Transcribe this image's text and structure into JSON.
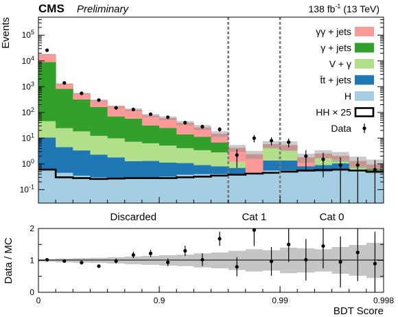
{
  "figure": {
    "experiment": "CMS",
    "status": "Preliminary",
    "lumi_value": "138 fb",
    "lumi_exp": "-1",
    "lumi_energy": " (13 TeV)"
  },
  "chart_data": {
    "type": "bar",
    "stacked": true,
    "log_y": true,
    "xlabel": "BDT Score",
    "ylabel": "Events",
    "ratio_ylabel": "Data / MC",
    "ylim": [
      0.03,
      500000
    ],
    "ratio_ylim": [
      0,
      2
    ],
    "bins": 20,
    "x_ticks": [
      {
        "bin": 0,
        "label": "0"
      },
      {
        "bin": 7,
        "label": "0.9"
      },
      {
        "bin": 14,
        "label": "0.99"
      },
      {
        "bin": 20,
        "label": "0.998"
      }
    ],
    "y_ticks": [
      {
        "value": 0.1,
        "base": "10",
        "exp": "-1"
      },
      {
        "value": 1,
        "base": "10",
        "exp": "0"
      },
      {
        "value": 10,
        "base": "10",
        "exp": "1"
      },
      {
        "value": 100,
        "base": "10",
        "exp": "2"
      },
      {
        "value": 1000,
        "base": "10",
        "exp": "3"
      },
      {
        "value": 10000,
        "base": "10",
        "exp": "4"
      },
      {
        "value": 100000,
        "base": "10",
        "exp": "5"
      }
    ],
    "ratio_y_ticks": [
      0,
      1,
      2
    ],
    "category_boundaries": [
      11,
      14
    ],
    "regions": [
      {
        "label": "Discarded",
        "center_bin": 5.5
      },
      {
        "label": "Cat 1",
        "center_bin": 12.5
      },
      {
        "label": "Cat 0",
        "center_bin": 17
      }
    ],
    "series": [
      {
        "name": "H",
        "color": "#a6cee3",
        "values": [
          0.6,
          0.45,
          0.35,
          0.3,
          0.28,
          0.27,
          0.3,
          0.32,
          0.38,
          0.4,
          0.4,
          0.4,
          0.4,
          0.55,
          0.55,
          0.5,
          0.5,
          0.55,
          0.5,
          0.45
        ]
      },
      {
        "name": "t̄t + jets",
        "color": "#1f78b4",
        "values": [
          10,
          4,
          3,
          2,
          1.5,
          1,
          1,
          0.8,
          0.7,
          0.5,
          0.4,
          0.3,
          0,
          0.8,
          0.8,
          0.3,
          0.4,
          0.5,
          0,
          0
        ]
      },
      {
        "name": "V + γ",
        "color": "#b2df8a",
        "values": [
          35,
          20,
          15,
          10,
          8,
          6,
          5,
          4,
          3,
          2.5,
          2,
          0.5,
          0,
          3,
          2,
          0,
          0.8,
          0.4,
          0.3,
          0
        ]
      },
      {
        "name": "γ + jets",
        "color": "#33a02c",
        "values": [
          9000,
          800,
          300,
          150,
          60,
          50,
          25,
          20,
          10,
          8,
          4,
          0,
          0,
          0,
          0,
          0,
          0,
          0,
          0,
          0.2
        ]
      },
      {
        "name": "γγ + jets",
        "color": "#fb9a99",
        "values": [
          9000,
          450,
          220,
          130,
          100,
          70,
          45,
          35,
          25,
          15,
          8,
          3,
          2,
          1.5,
          2,
          1,
          0.8,
          0.6,
          0.5,
          0.3
        ]
      }
    ],
    "signal": {
      "name": "HH × 25",
      "values": [
        0.6,
        0.3,
        0.28,
        0.26,
        0.27,
        0.28,
        0.28,
        0.28,
        0.3,
        0.32,
        0.35,
        0.38,
        0.42,
        0.45,
        0.5,
        0.55,
        0.58,
        0.6,
        0.55,
        0.5
      ]
    },
    "data": {
      "name": "Data",
      "values": [
        26000,
        1400,
        550,
        300,
        150,
        130,
        85,
        65,
        40,
        28,
        22,
        2.2,
        10,
        8,
        7,
        2,
        1.5,
        0.9,
        0.9,
        0.6
      ],
      "errors_up": [
        160,
        37,
        23,
        17,
        12,
        11,
        9,
        8,
        6.3,
        5.3,
        4.7,
        1.5,
        3.2,
        2.8,
        2.6,
        1.4,
        1.2,
        0.9,
        0.9,
        0.8
      ]
    },
    "ratio": {
      "values": [
        1.02,
        0.98,
        0.93,
        0.82,
        0.98,
        1.17,
        1.22,
        0.94,
        1.3,
        1.02,
        1.68,
        0.8,
        1.95,
        0.97,
        1.5,
        1.02,
        1.45,
        0.95,
        1.25,
        0.9
      ],
      "errors": [
        0.01,
        0.03,
        0.04,
        0.05,
        0.08,
        0.1,
        0.11,
        0.12,
        0.16,
        0.2,
        0.22,
        0.3,
        0.5,
        0.45,
        0.55,
        0.65,
        0.7,
        0.8,
        0.9,
        1.0
      ]
    },
    "mc_uncertainty": [
      0.04,
      0.06,
      0.07,
      0.08,
      0.1,
      0.12,
      0.14,
      0.16,
      0.18,
      0.22,
      0.25,
      0.3,
      0.35,
      0.32,
      0.4,
      0.38,
      0.35,
      0.42,
      0.48,
      0.55
    ]
  }
}
